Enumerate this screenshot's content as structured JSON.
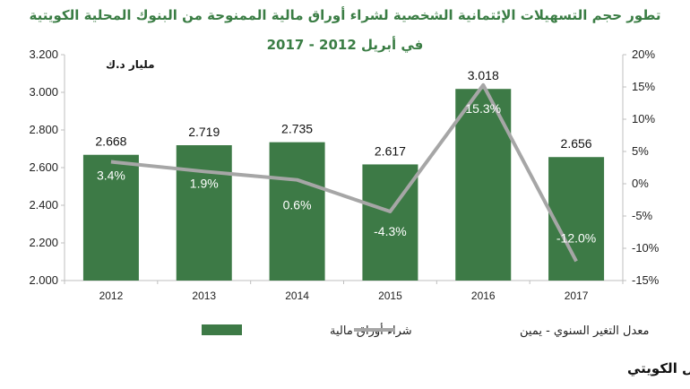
{
  "chart_data": {
    "type": "bar",
    "title": "تطور حجم التسهيلات الإئتمانية الشخصية  لشراء أوراق مالية الممنوحة من البنوك المحلية الكويتية",
    "subtitle": "في أبريل  2012  -  2017",
    "unit_label": "مليار د.ك",
    "categories": [
      "2012",
      "2013",
      "2014",
      "2015",
      "2016",
      "2017"
    ],
    "series": [
      {
        "name": "شراء أوراق مالية",
        "type": "bar",
        "axis": "left",
        "color": "#3d7a46",
        "values": [
          2.668,
          2.719,
          2.735,
          2.617,
          3.018,
          2.656
        ],
        "labels": [
          "2.668",
          "2.719",
          "2.735",
          "2.617",
          "3.018",
          "2.656"
        ]
      },
      {
        "name": "معدل التغير السنوي - يمين",
        "type": "line",
        "axis": "right",
        "color": "#a6a6a6",
        "values": [
          3.4,
          1.9,
          0.6,
          -4.3,
          15.3,
          -12.0
        ],
        "labels": [
          "3.4%",
          "1.9%",
          "0.6%",
          "-4.3%",
          "15.3%",
          "-12.0%"
        ]
      }
    ],
    "y_left": {
      "min": 2.0,
      "max": 3.2,
      "ticks": [
        2.0,
        2.2,
        2.4,
        2.6,
        2.8,
        3.0,
        3.2
      ],
      "tick_labels": [
        "2.000",
        "2.200",
        "2.400",
        "2.600",
        "2.800",
        "3.000",
        "3.200"
      ]
    },
    "y_right": {
      "min": -15,
      "max": 20,
      "ticks": [
        -15,
        -10,
        -5,
        0,
        5,
        10,
        15,
        20
      ],
      "tick_labels": [
        "-15%",
        "-10%",
        "-5%",
        "0%",
        "5%",
        "10%",
        "15%",
        "20%"
      ]
    },
    "grid": false,
    "legend_position": "bottom",
    "source": "المصدر: بنك الكويت المركزي -بيانات بيت التمويل الكويتي"
  }
}
